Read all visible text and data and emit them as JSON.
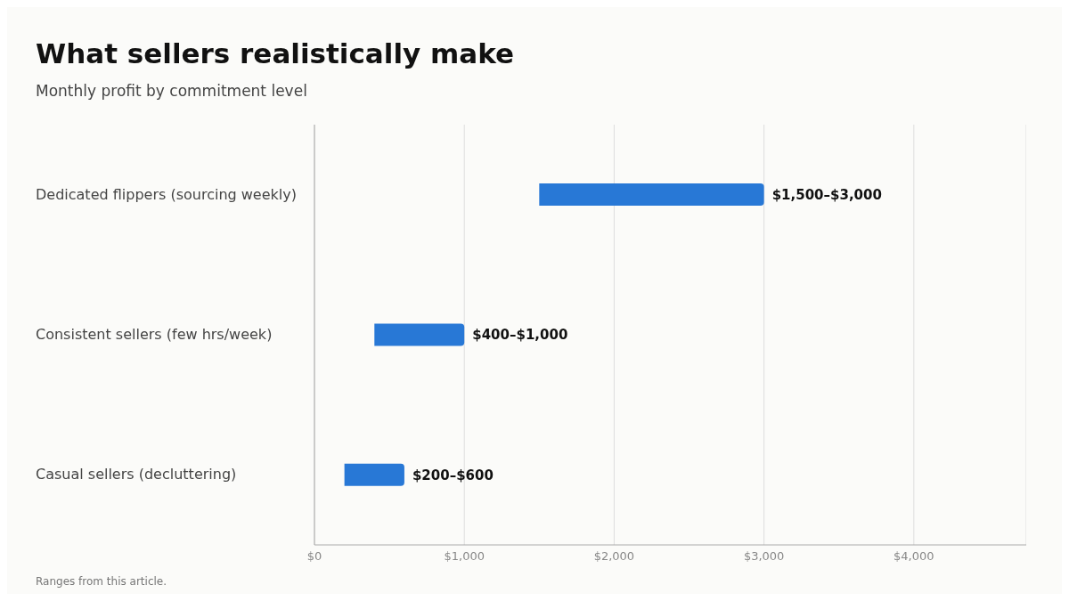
{
  "chart_data": {
    "type": "bar",
    "orientation": "horizontal",
    "title": "What sellers realistically make",
    "subtitle": "Monthly profit by commitment level",
    "categories": [
      "Dedicated flippers (sourcing weekly)",
      "Consistent sellers (few hrs/week)",
      "Casual sellers (decluttering)"
    ],
    "base": [
      1500,
      400,
      200
    ],
    "values": [
      1500,
      600,
      400
    ],
    "color": "#2878d6",
    "value_labels": [
      "$1,500–$3,000",
      "$400–$1,000",
      "$200–$600"
    ],
    "xlim": [
      0,
      4750
    ],
    "xticks": [
      {
        "value": 0,
        "label": "$0"
      },
      {
        "value": 1000,
        "label": "$1,000"
      },
      {
        "value": 2000,
        "label": "$2,000"
      },
      {
        "value": 3000,
        "label": "$3,000"
      },
      {
        "value": 4000,
        "label": "$4,000"
      }
    ],
    "grid": "x",
    "legend": false,
    "annotations": [
      "Ranges from this article."
    ]
  }
}
